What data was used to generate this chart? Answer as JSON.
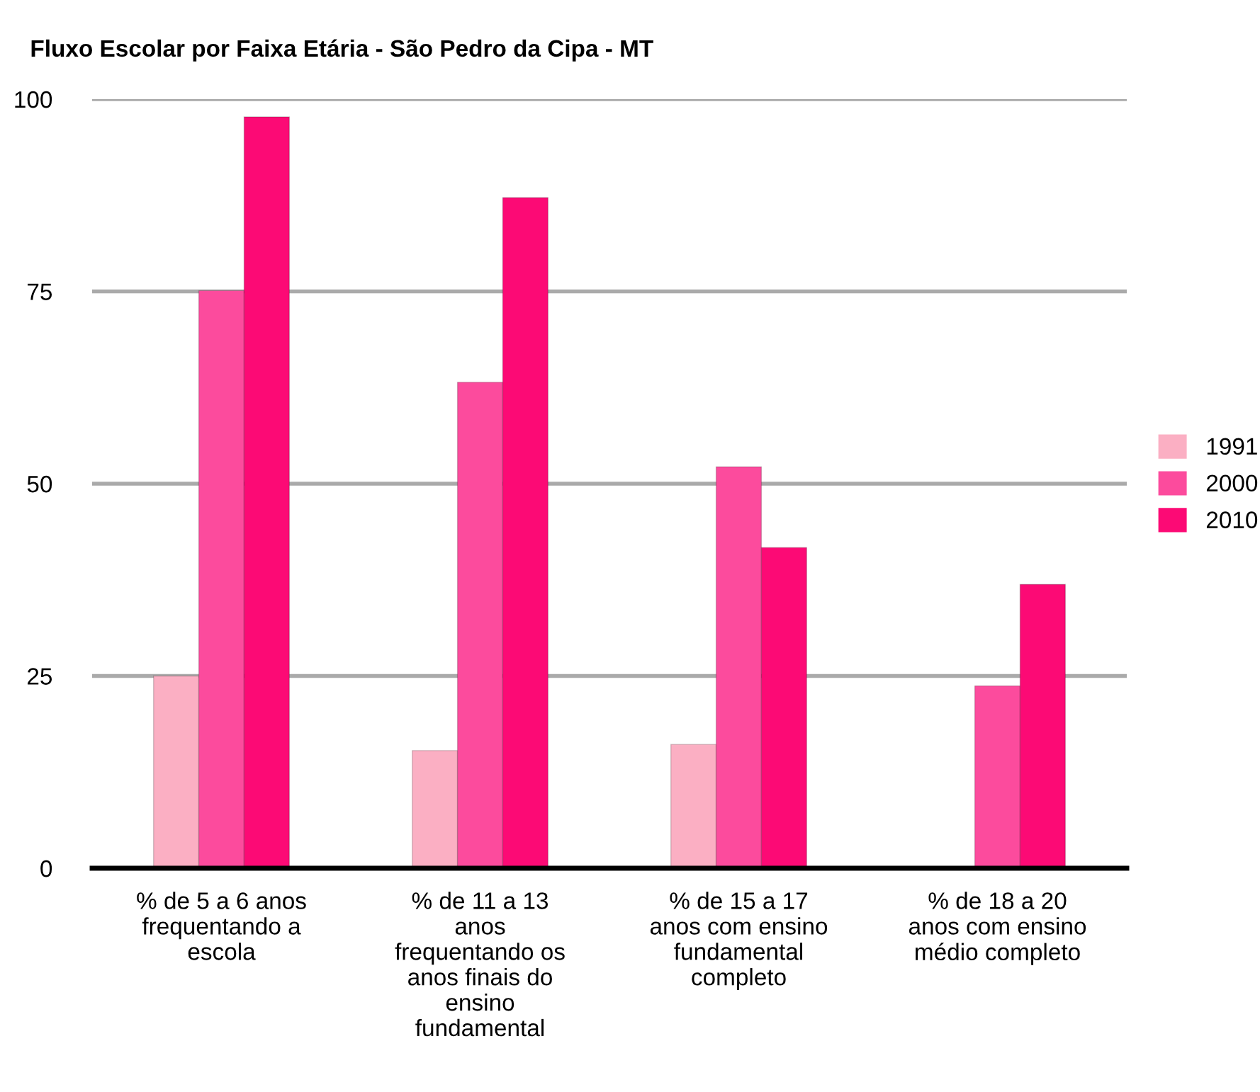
{
  "chart_data": {
    "type": "bar",
    "title": "Fluxo Escolar por Faixa Etária - São Pedro da Cipa - MT",
    "categories": [
      "% de 5 a 6 anos\nfrequentando a\nescola",
      "% de 11 a 13\nanos\nfrequentando os\nanos finais do\nensino\nfundamental",
      "% de 15 a 17\nanos com ensino\nfundamental\ncompleto",
      "% de 18 a 20\nanos com ensino\nmédio completo"
    ],
    "series": [
      {
        "name": "1991",
        "color": "#fbafc3",
        "values": [
          25,
          15.3,
          16.1,
          null
        ]
      },
      {
        "name": "2000",
        "color": "#fc4b9d",
        "values": [
          75.1,
          63.2,
          52.2,
          23.7
        ]
      },
      {
        "name": "2010",
        "color": "#fc0a75",
        "values": [
          97.7,
          87.2,
          41.7,
          36.9
        ]
      }
    ],
    "ylim": [
      0,
      100
    ],
    "yticks": [
      0,
      25,
      50,
      75,
      100
    ],
    "grid": "y",
    "legend": "right"
  }
}
